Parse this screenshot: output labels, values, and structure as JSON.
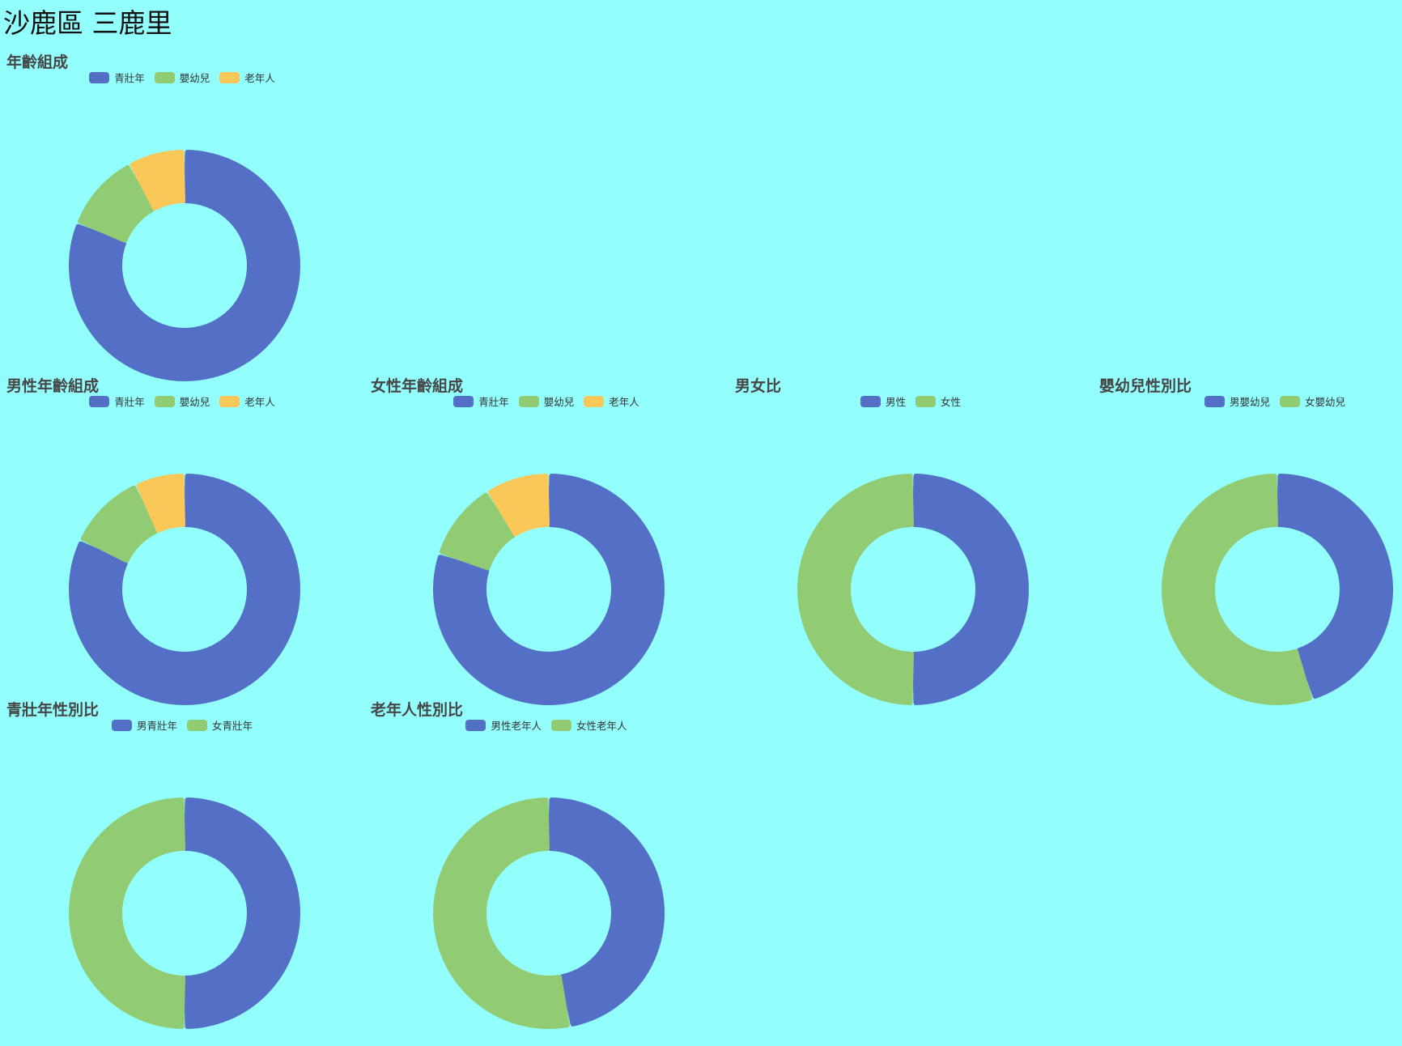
{
  "page": {
    "title": "沙鹿區 三鹿里"
  },
  "colors": {
    "background": "#93FFFD",
    "blue": "#5470C6",
    "green": "#91CC75",
    "yellow": "#FAC858"
  },
  "chart_data": [
    {
      "id": "age",
      "type": "pie",
      "title": "年齡組成",
      "categories": [
        "青壯年",
        "嬰幼兒",
        "老年人"
      ],
      "values": [
        81,
        11,
        8
      ],
      "colors": [
        "#5470C6",
        "#91CC75",
        "#FAC858"
      ]
    },
    {
      "id": "male-age",
      "type": "pie",
      "title": "男性年齡組成",
      "categories": [
        "青壯年",
        "嬰幼兒",
        "老年人"
      ],
      "values": [
        82,
        11,
        7
      ],
      "colors": [
        "#5470C6",
        "#91CC75",
        "#FAC858"
      ]
    },
    {
      "id": "female-age",
      "type": "pie",
      "title": "女性年齡組成",
      "categories": [
        "青壯年",
        "嬰幼兒",
        "老年人"
      ],
      "values": [
        80,
        11,
        9
      ],
      "colors": [
        "#5470C6",
        "#91CC75",
        "#FAC858"
      ]
    },
    {
      "id": "sex-ratio",
      "type": "pie",
      "title": "男女比",
      "categories": [
        "男性",
        "女性"
      ],
      "values": [
        50,
        50
      ],
      "colors": [
        "#5470C6",
        "#91CC75"
      ]
    },
    {
      "id": "infant-sex",
      "type": "pie",
      "title": "嬰幼兒性別比",
      "categories": [
        "男嬰幼兒",
        "女嬰幼兒"
      ],
      "values": [
        45,
        55
      ],
      "colors": [
        "#5470C6",
        "#91CC75"
      ]
    },
    {
      "id": "adult-sex",
      "type": "pie",
      "title": "青壯年性別比",
      "categories": [
        "男青壯年",
        "女青壯年"
      ],
      "values": [
        50,
        50
      ],
      "colors": [
        "#5470C6",
        "#91CC75"
      ]
    },
    {
      "id": "elder-sex",
      "type": "pie",
      "title": "老年人性別比",
      "categories": [
        "男性老年人",
        "女性老年人"
      ],
      "values": [
        47,
        53
      ],
      "colors": [
        "#5470C6",
        "#91CC75"
      ]
    }
  ]
}
